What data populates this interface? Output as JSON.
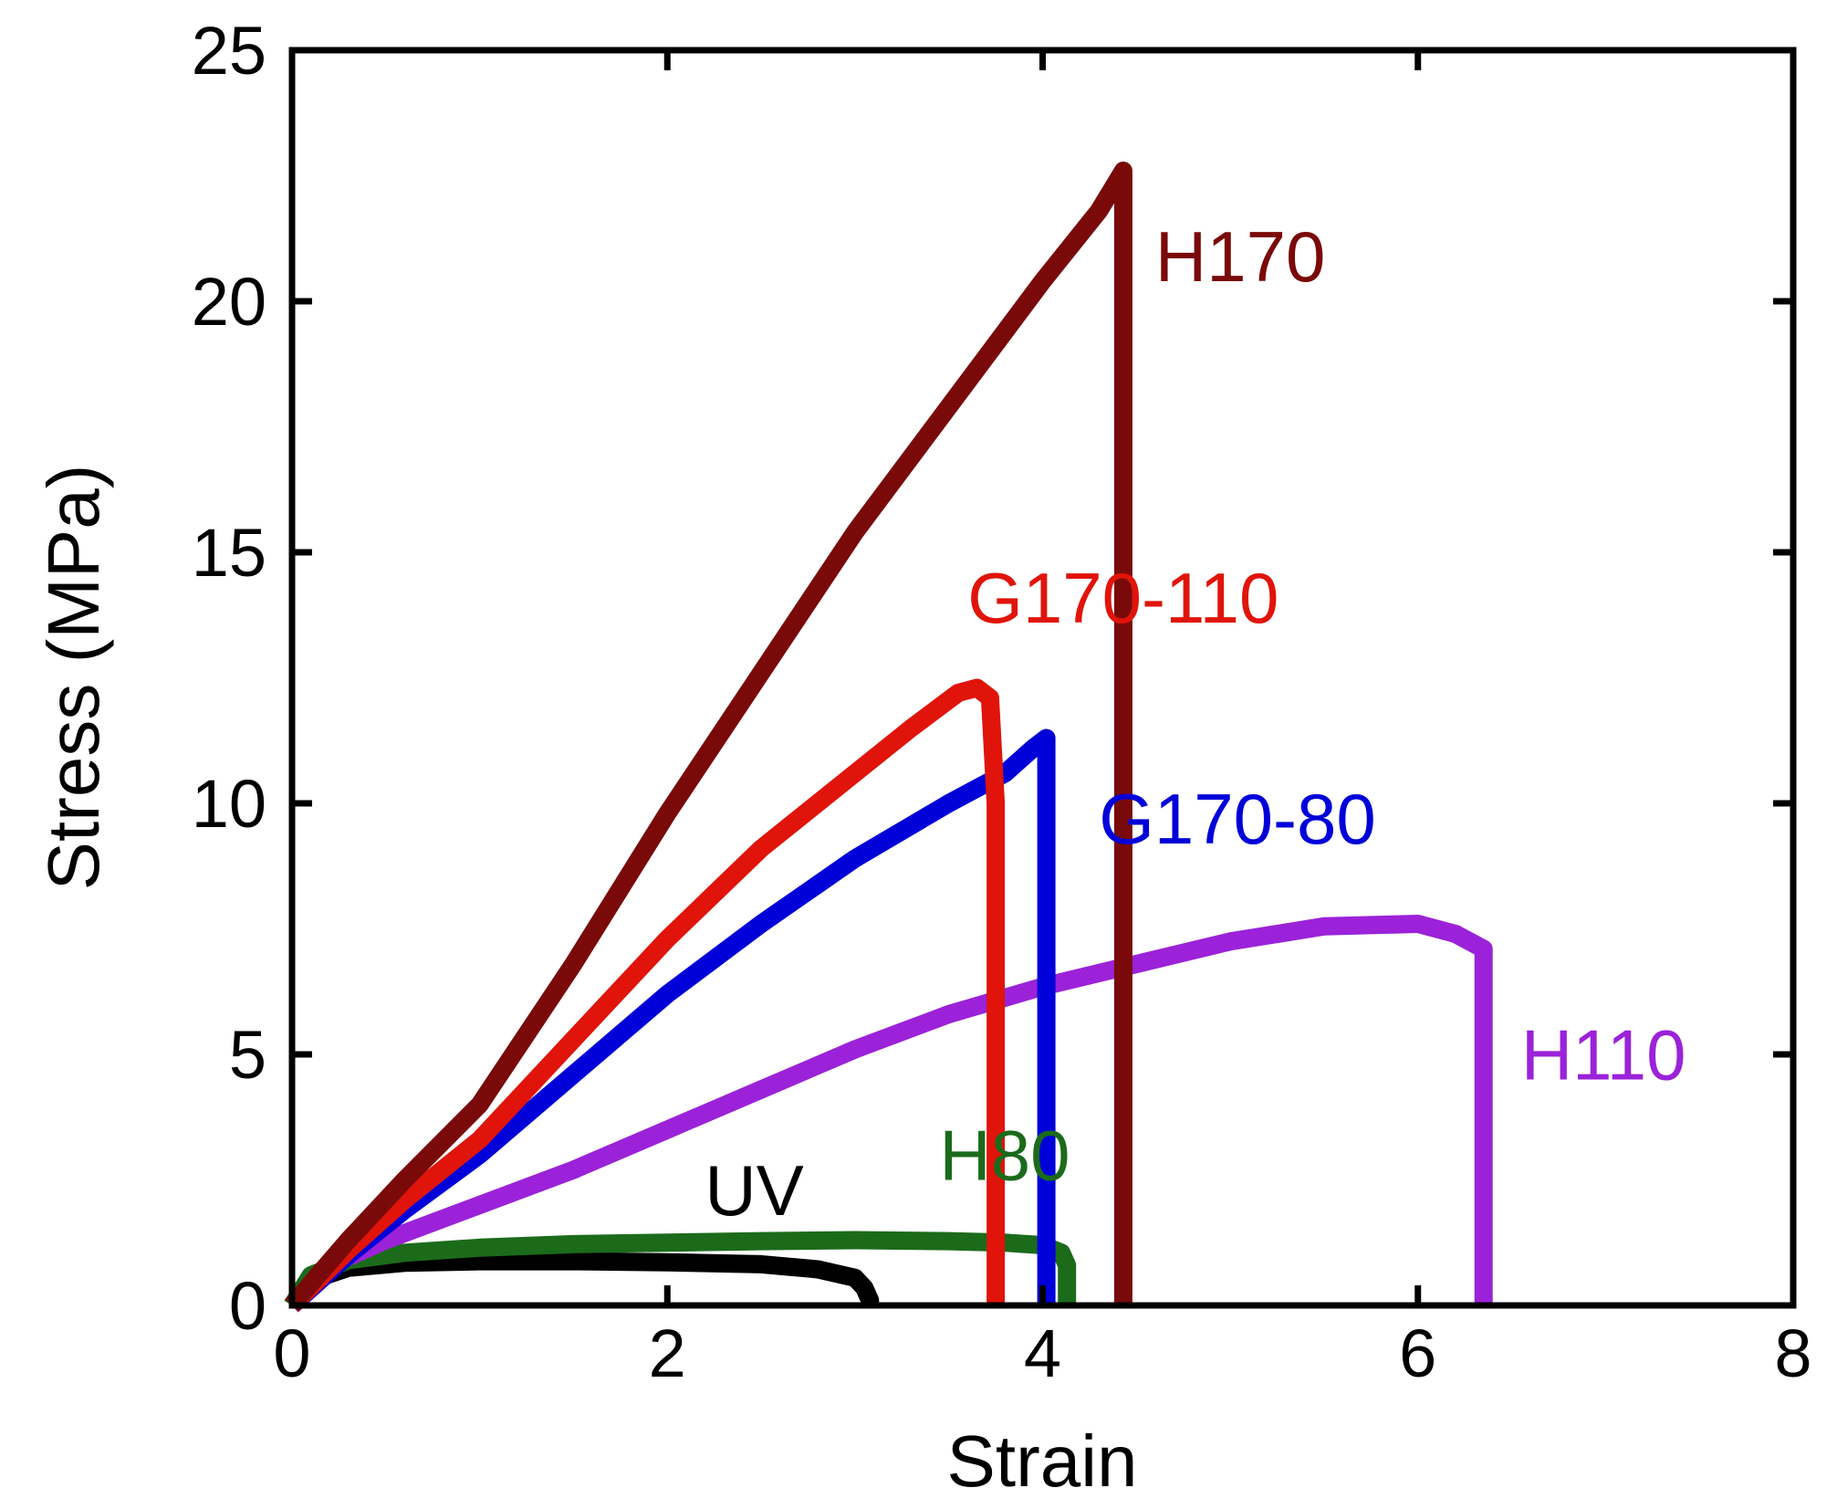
{
  "chart_data": {
    "type": "line",
    "title": "",
    "xlabel": "Strain",
    "ylabel": "Stress (MPa)",
    "xlim": [
      0,
      8
    ],
    "ylim": [
      0,
      25
    ],
    "xticks": [
      0,
      2,
      4,
      6,
      8
    ],
    "yticks": [
      0,
      5,
      10,
      15,
      20,
      25
    ],
    "grid": false,
    "legend": "inline labels",
    "series": [
      {
        "name": "UV",
        "color": "#000000",
        "x": [
          0,
          0.1,
          0.3,
          0.6,
          1.0,
          1.5,
          2.0,
          2.5,
          2.8,
          3.0,
          3.05,
          3.08,
          3.08
        ],
        "y": [
          0,
          0.5,
          0.75,
          0.85,
          0.88,
          0.88,
          0.86,
          0.82,
          0.72,
          0.55,
          0.35,
          0.1,
          0
        ]
      },
      {
        "name": "H80",
        "color": "#1b6b1b",
        "x": [
          0,
          0.1,
          0.3,
          0.6,
          1.0,
          1.5,
          2.0,
          2.5,
          3.0,
          3.5,
          3.8,
          4.0,
          4.1,
          4.13,
          4.13
        ],
        "y": [
          0,
          0.6,
          0.9,
          1.05,
          1.15,
          1.22,
          1.25,
          1.28,
          1.3,
          1.28,
          1.25,
          1.2,
          1.05,
          0.8,
          0
        ]
      },
      {
        "name": "H110",
        "color": "#9b22d8",
        "x": [
          0,
          0.2,
          0.5,
          1.0,
          1.5,
          2.0,
          2.5,
          3.0,
          3.5,
          4.0,
          4.5,
          5.0,
          5.5,
          6.0,
          6.2,
          6.35,
          6.35
        ],
        "y": [
          0,
          0.8,
          1.3,
          2.0,
          2.7,
          3.5,
          4.3,
          5.1,
          5.8,
          6.35,
          6.8,
          7.25,
          7.55,
          7.6,
          7.4,
          7.1,
          0
        ]
      },
      {
        "name": "G170-80",
        "color": "#0000d8",
        "x": [
          0,
          0.3,
          0.6,
          1.0,
          1.5,
          2.0,
          2.5,
          3.0,
          3.5,
          3.8,
          3.95,
          4.02,
          4.02
        ],
        "y": [
          0,
          1.0,
          1.9,
          3.0,
          4.6,
          6.2,
          7.6,
          8.9,
          10.0,
          10.6,
          11.1,
          11.3,
          0
        ]
      },
      {
        "name": "G170-110",
        "color": "#e0140a",
        "x": [
          0,
          0.3,
          0.6,
          1.0,
          1.5,
          2.0,
          2.5,
          3.0,
          3.3,
          3.55,
          3.65,
          3.72,
          3.75,
          3.75,
          3.75
        ],
        "y": [
          0,
          1.1,
          2.1,
          3.3,
          5.3,
          7.3,
          9.1,
          10.6,
          11.5,
          12.2,
          12.3,
          12.1,
          10.0,
          9.5,
          0
        ]
      },
      {
        "name": "H170",
        "color": "#7a0a0a",
        "x": [
          0,
          0.3,
          0.6,
          1.0,
          1.5,
          2.0,
          2.5,
          3.0,
          3.5,
          4.0,
          4.3,
          4.43,
          4.43
        ],
        "y": [
          0,
          1.3,
          2.5,
          4.0,
          6.8,
          9.8,
          12.6,
          15.4,
          17.9,
          20.4,
          21.8,
          22.6,
          0
        ]
      }
    ],
    "annotations": [
      {
        "text": "H170",
        "series": "H170",
        "color": "#7a0a0a",
        "x": 4.6,
        "y": 20.4
      },
      {
        "text": "G170-110",
        "series": "G170-110",
        "color": "#e0140a",
        "x": 3.6,
        "y": 13.6
      },
      {
        "text": "G170-80",
        "series": "G170-80",
        "color": "#0000d8",
        "x": 4.3,
        "y": 9.2
      },
      {
        "text": "H110",
        "series": "H110",
        "color": "#9b22d8",
        "x": 6.55,
        "y": 4.5
      },
      {
        "text": "UV",
        "series": "UV",
        "color": "#000000",
        "x": 2.2,
        "y": 1.8
      },
      {
        "text": "H80",
        "series": "H80",
        "color": "#1b6b1b",
        "x": 3.45,
        "y": 2.5
      }
    ]
  }
}
